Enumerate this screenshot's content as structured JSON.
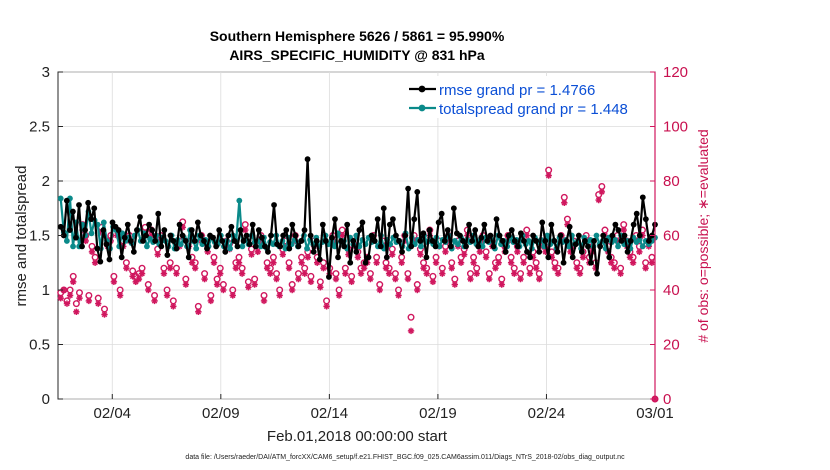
{
  "chart_data": {
    "type": "line",
    "title_line1": "Southern Hemisphere 5626 / 5861 = 95.990%",
    "title_line2": "AIRS_SPECIFIC_HUMIDITY @ 831 hPa",
    "xlabel": "Feb.01,2018 00:00:00 start",
    "ylabel_left": "rmse and totalspread",
    "ylabel_right": "# of obs: o=possible; ∗=evaluated",
    "footer": "data file: /Users/raeder/DAI/ATM_forcXX/CAM6_setup/f.e21.FHIST_BGC.f09_025.CAM6assim.011/Diags_NTrS_2018-02/obs_diag_output.nc",
    "x_range_days": [
      1.5,
      29.0
    ],
    "x_ticks": [
      {
        "day": 4,
        "label": "02/04"
      },
      {
        "day": 9,
        "label": "02/09"
      },
      {
        "day": 14,
        "label": "02/14"
      },
      {
        "day": 19,
        "label": "02/19"
      },
      {
        "day": 24,
        "label": "02/24"
      },
      {
        "day": 29,
        "label": "03/01"
      }
    ],
    "ylim_left": [
      0,
      3
    ],
    "yticks_left": [
      "0",
      "0.5",
      "1",
      "1.5",
      "2",
      "2.5",
      "3"
    ],
    "ylim_right": [
      0,
      120
    ],
    "yticks_right": [
      "0",
      "20",
      "40",
      "60",
      "80",
      "100",
      "120"
    ],
    "legend_location": "top-right",
    "colors": {
      "rmse": "#000000",
      "spread": "#0a8a8a",
      "obs": "#d0175e",
      "legend_text": "#0b4fd6"
    },
    "series": [
      {
        "name": "rmse grand pr = 1.4766",
        "key": "rmse",
        "values": [
          1.58,
          1.5,
          1.82,
          1.55,
          1.72,
          1.48,
          1.78,
          1.4,
          1.55,
          1.8,
          1.65,
          1.75,
          1.38,
          1.26,
          1.55,
          1.42,
          1.28,
          1.62,
          1.58,
          1.55,
          1.3,
          1.48,
          1.6,
          1.45,
          1.35,
          1.55,
          1.67,
          1.45,
          1.5,
          1.6,
          1.55,
          1.45,
          1.7,
          1.4,
          1.55,
          1.32,
          1.5,
          1.45,
          1.38,
          1.6,
          1.5,
          1.45,
          1.3,
          1.55,
          1.45,
          1.62,
          1.5,
          1.45,
          1.38,
          1.5,
          1.48,
          1.4,
          1.55,
          1.45,
          1.35,
          1.5,
          1.58,
          1.45,
          1.4,
          1.55,
          1.45,
          1.5,
          1.42,
          1.6,
          1.4,
          1.55,
          1.48,
          1.4,
          1.35,
          1.5,
          1.78,
          1.42,
          1.4,
          1.5,
          1.55,
          1.38,
          1.6,
          1.5,
          1.4,
          1.45,
          1.55,
          2.2,
          1.5,
          1.35,
          1.45,
          1.28,
          1.6,
          1.45,
          1.12,
          1.48,
          1.65,
          1.3,
          1.45,
          1.4,
          1.6,
          1.25,
          1.45,
          1.35,
          1.55,
          1.62,
          1.25,
          1.3,
          1.5,
          1.45,
          1.65,
          1.4,
          1.75,
          1.3,
          1.6,
          1.65,
          1.5,
          1.45,
          1.35,
          1.5,
          1.93,
          1.4,
          1.65,
          1.9,
          1.45,
          1.52,
          1.3,
          1.55,
          1.45,
          1.4,
          1.62,
          1.7,
          1.45,
          1.55,
          1.4,
          1.75,
          1.52,
          1.5,
          1.45,
          1.4,
          1.6,
          1.45,
          1.55,
          1.4,
          1.48,
          1.6,
          1.45,
          1.5,
          1.4,
          1.65,
          1.5,
          1.45,
          1.35,
          1.5,
          1.55,
          1.45,
          1.4,
          1.52,
          1.45,
          1.35,
          1.3,
          1.5,
          1.45,
          1.35,
          1.62,
          1.45,
          1.3,
          1.6,
          1.45,
          1.35,
          1.5,
          1.25,
          1.45,
          1.58,
          1.3,
          1.42,
          1.5,
          1.35,
          1.45,
          1.4,
          1.25,
          1.45,
          1.15,
          1.4,
          1.5,
          1.45,
          1.3,
          1.5,
          1.6,
          1.55,
          1.45,
          1.5,
          1.35,
          1.45,
          1.6,
          1.7,
          1.5,
          1.85,
          1.65,
          1.45,
          1.5,
          1.6
        ]
      },
      {
        "name": "totalspread grand pr = 1.448",
        "key": "spread",
        "values": [
          1.84,
          1.53,
          1.45,
          1.84,
          1.4,
          1.62,
          1.4,
          1.6,
          1.5,
          1.72,
          1.52,
          1.64,
          1.6,
          1.38,
          1.62,
          1.45,
          1.38,
          1.58,
          1.55,
          1.4,
          1.52,
          1.45,
          1.48,
          1.43,
          1.5,
          1.55,
          1.45,
          1.52,
          1.4,
          1.47,
          1.44,
          1.5,
          1.42,
          1.48,
          1.45,
          1.4,
          1.5,
          1.38,
          1.46,
          1.42,
          1.48,
          1.4,
          1.55,
          1.45,
          1.38,
          1.5,
          1.42,
          1.46,
          1.4,
          1.48,
          1.44,
          1.42,
          1.5,
          1.4,
          1.45,
          1.38,
          1.5,
          1.45,
          1.82,
          1.4,
          1.46,
          1.42,
          1.5,
          1.44,
          1.45,
          1.4,
          1.48,
          1.38,
          1.44,
          1.42,
          1.5,
          1.4,
          1.45,
          1.38,
          1.48,
          1.42,
          1.46,
          1.4,
          1.45,
          1.5,
          1.38,
          1.46,
          1.42,
          1.48,
          1.4,
          1.44,
          1.5,
          1.42,
          1.46,
          1.4,
          1.52,
          1.44,
          1.45,
          1.38,
          1.48,
          1.42,
          1.5,
          1.4,
          1.46,
          1.42,
          1.48,
          1.44,
          1.45,
          1.4,
          1.5,
          1.38,
          1.46,
          1.42,
          1.48,
          1.44,
          1.45,
          1.4,
          1.52,
          1.38,
          1.48,
          1.42,
          1.46,
          1.4,
          1.5,
          1.44,
          1.45,
          1.42,
          1.48,
          1.4,
          1.46,
          1.44,
          1.5,
          1.38,
          1.45,
          1.42,
          1.48,
          1.4,
          1.46,
          1.44,
          1.5,
          1.42,
          1.45,
          1.4,
          1.48,
          1.44,
          1.46,
          1.38,
          1.5,
          1.42,
          1.45,
          1.4,
          1.48,
          1.44,
          1.46,
          1.4,
          1.5,
          1.42,
          1.45,
          1.38,
          1.48,
          1.44,
          1.46,
          1.4,
          1.5,
          1.42,
          1.45,
          1.38,
          1.48,
          1.44,
          1.46,
          1.4,
          1.5,
          1.42,
          1.45,
          1.38,
          1.48,
          1.44,
          1.46,
          1.4,
          1.5,
          1.42,
          1.45,
          1.38,
          1.48,
          1.44,
          1.46,
          1.4,
          1.5,
          1.42,
          1.45,
          1.38,
          1.48,
          1.44,
          1.46,
          1.4,
          1.45,
          1.42,
          1.45,
          1.48
        ]
      }
    ],
    "obs_possible": [
      39,
      40,
      36,
      40,
      45,
      35,
      39,
      64,
      60,
      38,
      56,
      52,
      37,
      63,
      33,
      58,
      60,
      45,
      62,
      40,
      58,
      50,
      60,
      47,
      45,
      46,
      48,
      63,
      42,
      62,
      38,
      55,
      60,
      48,
      40,
      50,
      36,
      48,
      58,
      65,
      44,
      58,
      52,
      50,
      34,
      60,
      46,
      56,
      38,
      52,
      44,
      48,
      42,
      58,
      57,
      40,
      50,
      52,
      48,
      64,
      43,
      55,
      44,
      56,
      60,
      38,
      50,
      48,
      52,
      46,
      40,
      55,
      58,
      50,
      42,
      60,
      46,
      52,
      48,
      54,
      45,
      58,
      52,
      43,
      50,
      36,
      48,
      60,
      46,
      40,
      62,
      48,
      55,
      45,
      58,
      54,
      48,
      50,
      52,
      46,
      60,
      52,
      42,
      58,
      50,
      48,
      55,
      46,
      40,
      52,
      60,
      46,
      30,
      60,
      42,
      55,
      50,
      48,
      62,
      45,
      52,
      58,
      48,
      56,
      60,
      50,
      44,
      58,
      52,
      55,
      62,
      46,
      52,
      48,
      56,
      60,
      54,
      46,
      58,
      50,
      52,
      44,
      56,
      60,
      52,
      48,
      56,
      46,
      52,
      62,
      48,
      54,
      50,
      46,
      58,
      56,
      84,
      54,
      50,
      48,
      60,
      74,
      66,
      56,
      58,
      50,
      48,
      54,
      60,
      52,
      56,
      50,
      75,
      78,
      62,
      56,
      52,
      50,
      60,
      48,
      64,
      58,
      54,
      52,
      60,
      56,
      62,
      50,
      58,
      52,
      0
    ],
    "obs_evaluated": [
      37,
      40,
      35,
      38,
      43,
      32,
      37,
      62,
      58,
      36,
      54,
      50,
      35,
      61,
      31,
      56,
      58,
      43,
      60,
      38,
      56,
      48,
      58,
      45,
      43,
      44,
      46,
      61,
      40,
      60,
      36,
      53,
      58,
      46,
      38,
      48,
      34,
      46,
      56,
      63,
      42,
      56,
      50,
      48,
      32,
      58,
      44,
      54,
      36,
      50,
      42,
      46,
      40,
      56,
      55,
      38,
      48,
      50,
      46,
      62,
      41,
      53,
      42,
      54,
      58,
      36,
      48,
      46,
      50,
      44,
      38,
      53,
      56,
      48,
      40,
      58,
      44,
      50,
      46,
      52,
      43,
      56,
      50,
      41,
      48,
      34,
      46,
      58,
      44,
      38,
      60,
      46,
      53,
      43,
      56,
      52,
      46,
      48,
      50,
      44,
      58,
      50,
      40,
      56,
      48,
      46,
      53,
      44,
      38,
      50,
      58,
      44,
      25,
      58,
      40,
      53,
      48,
      46,
      60,
      43,
      50,
      56,
      46,
      54,
      58,
      48,
      42,
      56,
      50,
      53,
      60,
      44,
      50,
      46,
      54,
      58,
      52,
      44,
      56,
      48,
      50,
      42,
      54,
      58,
      50,
      46,
      54,
      44,
      50,
      60,
      46,
      52,
      48,
      44,
      56,
      54,
      82,
      52,
      48,
      46,
      58,
      72,
      64,
      54,
      56,
      48,
      46,
      52,
      58,
      50,
      54,
      48,
      73,
      76,
      60,
      54,
      50,
      48,
      58,
      46,
      62,
      56,
      52,
      50,
      58,
      54,
      60,
      48,
      56,
      50,
      0
    ]
  }
}
